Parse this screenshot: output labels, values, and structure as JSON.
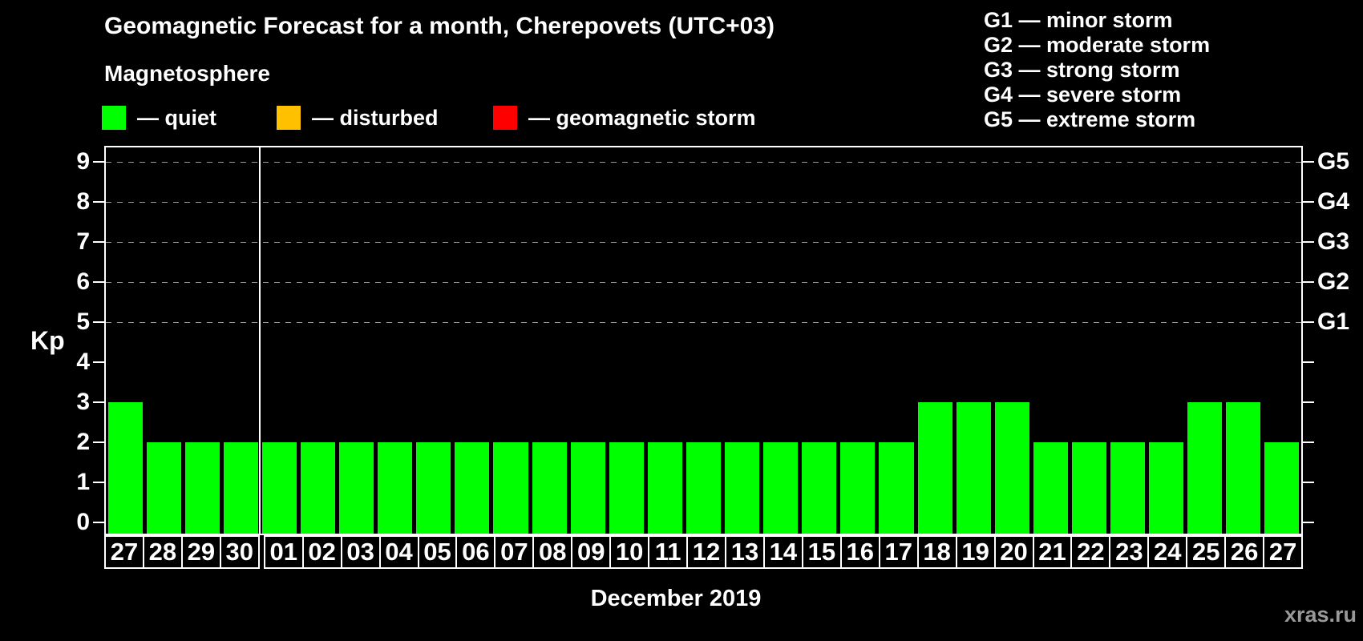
{
  "title": "Geomagnetic Forecast for a month, Cherepovets (UTC+03)",
  "subtitle": "Magnetosphere",
  "legend": {
    "items": [
      {
        "label": "— quiet",
        "color": "#00ff00"
      },
      {
        "label": "— disturbed",
        "color": "#ffc000"
      },
      {
        "label": "— geomagnetic storm",
        "color": "#ff0000"
      }
    ]
  },
  "storm_legend": {
    "items": [
      "G1 — minor storm",
      "G2 — moderate storm",
      "G3 — strong storm",
      "G4 — severe storm",
      "G5 — extreme storm"
    ]
  },
  "watermark": "xras.ru",
  "chart_data": {
    "type": "bar",
    "title": "Geomagnetic Forecast for a month, Cherepovets (UTC+03)",
    "xlabel": "December 2019",
    "ylabel": "Kp",
    "ylim": [
      0,
      9
    ],
    "yticks": [
      0,
      1,
      2,
      3,
      4,
      5,
      6,
      7,
      8,
      9
    ],
    "gridlines_at": [
      5,
      6,
      7,
      8,
      9
    ],
    "grid_style": "dashed",
    "right_axis": [
      {
        "value": 5,
        "label": "G1"
      },
      {
        "value": 6,
        "label": "G2"
      },
      {
        "value": 7,
        "label": "G3"
      },
      {
        "value": 8,
        "label": "G4"
      },
      {
        "value": 9,
        "label": "G5"
      }
    ],
    "categories": [
      "27",
      "28",
      "29",
      "30",
      "01",
      "02",
      "03",
      "04",
      "05",
      "06",
      "07",
      "08",
      "09",
      "10",
      "11",
      "12",
      "13",
      "14",
      "15",
      "16",
      "17",
      "18",
      "19",
      "20",
      "21",
      "22",
      "23",
      "24",
      "25",
      "26",
      "27"
    ],
    "values": [
      3,
      2,
      2,
      2,
      2,
      2,
      2,
      2,
      2,
      2,
      2,
      2,
      2,
      2,
      2,
      2,
      2,
      2,
      2,
      2,
      2,
      3,
      3,
      3,
      2,
      2,
      2,
      2,
      3,
      3,
      2
    ],
    "bar_color": "#00ff00",
    "divider_index": 4,
    "background": "#000000",
    "legend_position": "top"
  }
}
